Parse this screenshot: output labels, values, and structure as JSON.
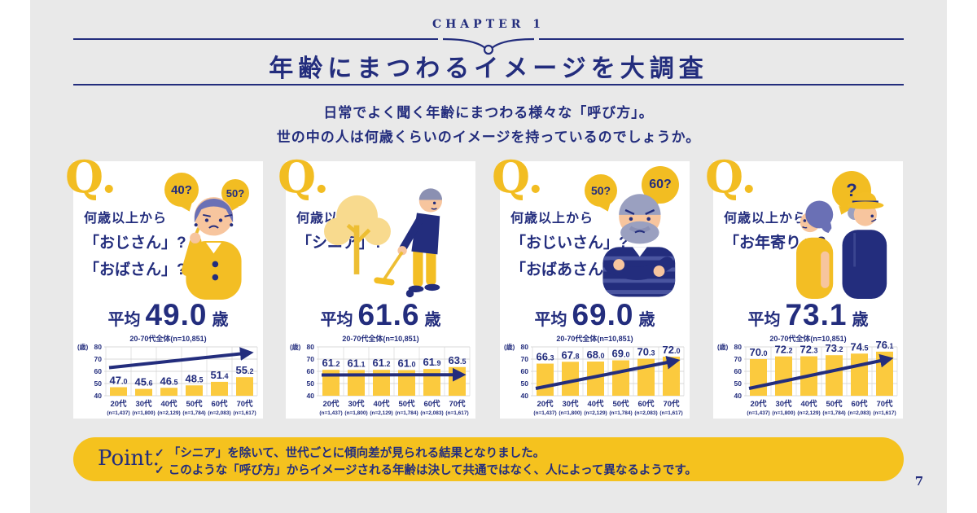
{
  "page": {
    "bg": "#ffffff",
    "panel_bg": "#e9e9e9",
    "navy": "#232d7d",
    "yellow": "#f2bd22",
    "bar_yellow": "#fbca3e",
    "grid_gray": "#d8d8d8",
    "page_number": "7"
  },
  "header": {
    "chapter": "CHAPTER 1",
    "title": "年齢にまつわるイメージを大調査",
    "subtitle_line1": "日常でよく聞く年齢にまつわる様々な「呼び方」。",
    "subtitle_line2": "世の中の人は何歳くらいのイメージを持っているのでしょうか。"
  },
  "cards": [
    {
      "q_label": "Q.",
      "question_lines": [
        "何歳以上から",
        "「おじさん」?",
        "「おばさん」?"
      ],
      "bubbles": [
        "40?",
        "50?"
      ],
      "illustration": "woman-thinking-illustration",
      "average_prefix": "平均",
      "average_value": "49.0",
      "average_suffix": "歳",
      "sample_note": "20-70代全体(n=10,851)"
    },
    {
      "q_label": "Q.",
      "question_lines": [
        "何歳以上から",
        "「シニア」?"
      ],
      "bubbles": [],
      "illustration": "gateball-man-illustration",
      "average_prefix": "平均",
      "average_value": "61.6",
      "average_suffix": "歳",
      "sample_note": "20-70代全体(n=10,851)"
    },
    {
      "q_label": "Q.",
      "question_lines": [
        "何歳以上から",
        "「おじいさん」?",
        "「おばあさん」?"
      ],
      "bubbles": [
        "50?",
        "60?"
      ],
      "illustration": "old-man-crossed-arms-illustration",
      "average_prefix": "平均",
      "average_value": "69.0",
      "average_suffix": "歳",
      "sample_note": "20-70代全体(n=10,851)"
    },
    {
      "q_label": "Q.",
      "question_lines": [
        "何歳以上から",
        "「お年寄り」?"
      ],
      "bubbles": [
        "?"
      ],
      "illustration": "elderly-couple-illustration",
      "average_prefix": "平均",
      "average_value": "73.1",
      "average_suffix": "歳",
      "sample_note": "20-70代全体(n=10,851)"
    }
  ],
  "chart_data": [
    {
      "type": "bar",
      "title": "何歳以上から「おじさん」?「おばさん」? (平均 49.0歳)",
      "categories": [
        "20代",
        "30代",
        "40代",
        "50代",
        "60代",
        "70代"
      ],
      "n_labels": [
        "(n=1,437)",
        "(n=1,800)",
        "(n=2,129)",
        "(n=1,784)",
        "(n=2,083)",
        "(n=1,617)"
      ],
      "values": [
        47.0,
        45.6,
        46.5,
        48.5,
        51.4,
        55.2
      ],
      "ylabel": "(歳)",
      "ylim": [
        40,
        80
      ],
      "yticks": [
        40,
        50,
        60,
        70,
        80
      ],
      "grid": true,
      "trend_arrow": {
        "from": 63,
        "to": 75
      }
    },
    {
      "type": "bar",
      "title": "何歳以上から「シニア」? (平均 61.6歳)",
      "categories": [
        "20代",
        "30代",
        "40代",
        "50代",
        "60代",
        "70代"
      ],
      "n_labels": [
        "(n=1,437)",
        "(n=1,800)",
        "(n=2,129)",
        "(n=1,784)",
        "(n=2,083)",
        "(n=1,617)"
      ],
      "values": [
        61.2,
        61.1,
        61.2,
        61.0,
        61.9,
        63.5
      ],
      "ylabel": "(歳)",
      "ylim": [
        40,
        80
      ],
      "yticks": [
        40,
        50,
        60,
        70,
        80
      ],
      "grid": true,
      "trend_arrow": {
        "from": 57,
        "to": 57.2
      }
    },
    {
      "type": "bar",
      "title": "何歳以上から「おじいさん」?「おばあさん」? (平均 69.0歳)",
      "categories": [
        "20代",
        "30代",
        "40代",
        "50代",
        "60代",
        "70代"
      ],
      "n_labels": [
        "(n=1,437)",
        "(n=1,800)",
        "(n=2,129)",
        "(n=1,784)",
        "(n=2,083)",
        "(n=1,617)"
      ],
      "values": [
        66.3,
        67.8,
        68.0,
        69.0,
        70.3,
        72.0
      ],
      "ylabel": "(歳)",
      "ylim": [
        40,
        80
      ],
      "yticks": [
        40,
        50,
        60,
        70,
        80
      ],
      "grid": true,
      "trend_arrow": {
        "from": 46,
        "to": 68.5
      }
    },
    {
      "type": "bar",
      "title": "何歳以上から「お年寄り」? (平均 73.1歳)",
      "categories": [
        "20代",
        "30代",
        "40代",
        "50代",
        "60代",
        "70代"
      ],
      "n_labels": [
        "(n=1,437)",
        "(n=1,800)",
        "(n=2,129)",
        "(n=1,784)",
        "(n=2,083)",
        "(n=1,617)"
      ],
      "values": [
        70.0,
        72.2,
        72.3,
        73.2,
        74.5,
        76.1
      ],
      "ylabel": "(歳)",
      "ylim": [
        40,
        80
      ],
      "yticks": [
        40,
        50,
        60,
        70,
        80
      ],
      "grid": true,
      "trend_arrow": {
        "from": 46,
        "to": 70
      }
    }
  ],
  "point": {
    "label": "Point.",
    "check_icon": "✓",
    "lines": [
      "「シニア」を除いて、世代ごとに傾向差が見られる結果となりました。",
      "このような「呼び方」からイメージされる年齢は決して共通ではなく、人によって異なるようです。"
    ]
  }
}
